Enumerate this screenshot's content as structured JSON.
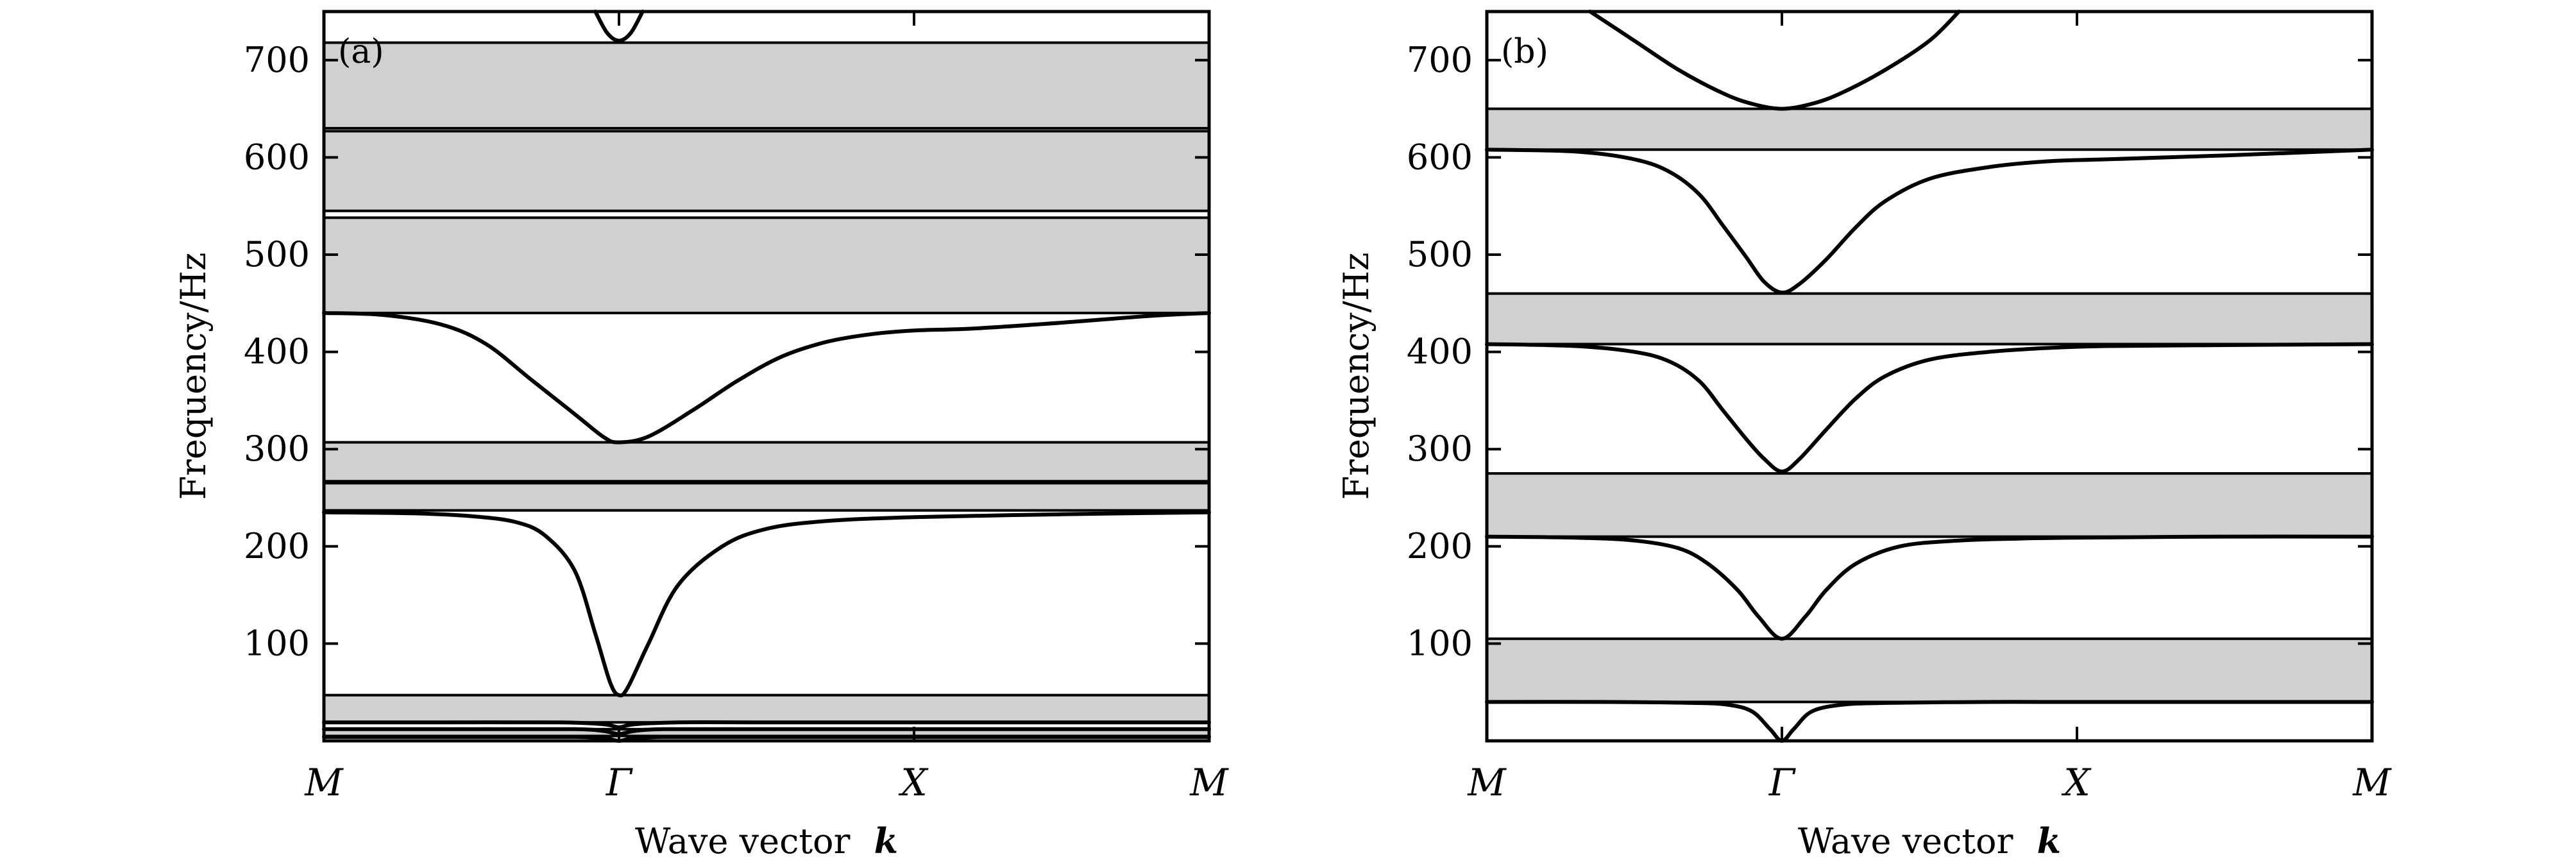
{
  "chart_data": [
    {
      "type": "line",
      "panel_label": "(a)",
      "xlabel": "Wave vector",
      "xlabel_symbol": "k",
      "ylabel": "Frequency/Hz",
      "ylim": [
        0,
        750
      ],
      "yticks": [
        100,
        200,
        300,
        400,
        500,
        600,
        700
      ],
      "xticks": [
        0,
        1,
        2,
        3
      ],
      "xtick_labels": [
        "M",
        "Γ",
        "X",
        "M"
      ],
      "band_gaps": [
        [
          5,
          12
        ],
        [
          19,
          47
        ],
        [
          237,
          265
        ],
        [
          267,
          307
        ],
        [
          440,
          538
        ],
        [
          545,
          627
        ],
        [
          630,
          718
        ]
      ],
      "series": [
        {
          "x": [
            0,
            0.4,
            0.7,
            0.85,
            0.95,
            1,
            1.05,
            1.15,
            1.3,
            1.6,
            2,
            2.5,
            3
          ],
          "values": [
            4,
            4,
            4,
            4,
            3,
            0,
            3,
            4,
            4,
            4,
            4,
            4,
            4
          ]
        },
        {
          "x": [
            0,
            0.5,
            0.85,
            0.95,
            1,
            1.05,
            1.15,
            1.5,
            2,
            3
          ],
          "values": [
            12,
            12,
            12,
            10,
            7,
            10,
            12,
            12,
            12,
            12
          ]
        },
        {
          "x": [
            0,
            0.4,
            0.8,
            0.95,
            1,
            1.05,
            1.2,
            1.5,
            2,
            3
          ],
          "values": [
            19,
            19,
            19,
            17,
            14,
            17,
            19,
            19,
            19,
            19
          ]
        },
        {
          "x": [
            0,
            0.3,
            0.5,
            0.65,
            0.75,
            0.85,
            0.92,
            0.97,
            1,
            1.03,
            1.1,
            1.2,
            1.35,
            1.5,
            1.7,
            2,
            2.5,
            3
          ],
          "values": [
            235,
            234,
            231,
            225,
            211,
            175,
            110,
            60,
            47,
            55,
            100,
            160,
            200,
            218,
            226,
            230,
            233,
            235
          ]
        },
        {
          "x": [
            0,
            0.2,
            0.4,
            0.55,
            0.7,
            0.85,
            0.95,
            1,
            1.1,
            1.25,
            1.4,
            1.55,
            1.7,
            1.85,
            2,
            2.2,
            2.5,
            2.8,
            3
          ],
          "values": [
            440,
            438,
            428,
            408,
            372,
            336,
            312,
            307,
            313,
            340,
            370,
            395,
            410,
            418,
            422,
            424,
            430,
            437,
            440
          ]
        },
        {
          "x": [
            0.92,
            0.96,
            1,
            1.04,
            1.08
          ],
          "values": [
            750,
            728,
            720,
            728,
            750
          ]
        }
      ]
    },
    {
      "type": "line",
      "panel_label": "(b)",
      "xlabel": "Wave vector",
      "xlabel_symbol": "k",
      "ylabel": "Frequency/Hz",
      "ylim": [
        0,
        750
      ],
      "yticks": [
        100,
        200,
        300,
        400,
        500,
        600,
        700
      ],
      "xticks": [
        0,
        1,
        2,
        3
      ],
      "xtick_labels": [
        "M",
        "Γ",
        "X",
        "M"
      ],
      "band_gaps": [
        [
          40,
          105
        ],
        [
          210,
          275
        ],
        [
          408,
          460
        ],
        [
          608,
          650
        ]
      ],
      "series": [
        {
          "x": [
            0,
            0.4,
            0.7,
            0.82,
            0.9,
            0.96,
            1,
            1.04,
            1.1,
            1.2,
            1.35,
            1.7,
            2,
            3
          ],
          "values": [
            40,
            40,
            39,
            37,
            30,
            12,
            0,
            12,
            30,
            37,
            39,
            40,
            40,
            40
          ]
        },
        {
          "x": [
            0,
            0.3,
            0.5,
            0.65,
            0.75,
            0.85,
            0.92,
            1,
            1.08,
            1.15,
            1.25,
            1.4,
            1.6,
            1.8,
            2,
            2.5,
            3
          ],
          "values": [
            210,
            209,
            206,
            198,
            182,
            155,
            128,
            105,
            128,
            155,
            182,
            200,
            206,
            208,
            209,
            210,
            210
          ]
        },
        {
          "x": [
            0,
            0.3,
            0.5,
            0.62,
            0.72,
            0.8,
            0.88,
            0.94,
            1,
            1.06,
            1.15,
            1.25,
            1.35,
            1.5,
            1.7,
            1.9,
            2.1,
            2.5,
            3
          ],
          "values": [
            408,
            406,
            400,
            390,
            370,
            340,
            310,
            290,
            277,
            290,
            320,
            352,
            375,
            392,
            400,
            404,
            406,
            407,
            408
          ]
        },
        {
          "x": [
            0,
            0.3,
            0.5,
            0.62,
            0.72,
            0.8,
            0.88,
            0.94,
            1,
            1.06,
            1.15,
            1.25,
            1.35,
            1.5,
            1.7,
            1.9,
            2.1,
            2.5,
            3
          ],
          "values": [
            608,
            606,
            598,
            585,
            562,
            530,
            497,
            472,
            461,
            470,
            495,
            528,
            555,
            578,
            590,
            596,
            598,
            602,
            608
          ]
        },
        {
          "x": [
            0.35,
            0.5,
            0.65,
            0.8,
            0.9,
            1,
            1.1,
            1.2,
            1.35,
            1.5,
            1.6
          ],
          "values": [
            750,
            720,
            690,
            666,
            655,
            650,
            655,
            666,
            690,
            720,
            750
          ]
        }
      ]
    }
  ]
}
